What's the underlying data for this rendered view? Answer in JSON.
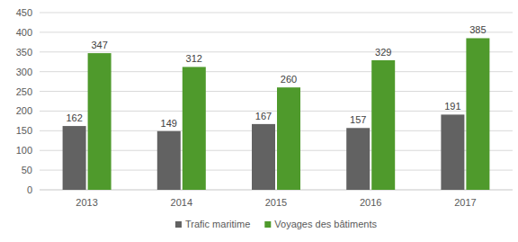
{
  "chart_data": {
    "type": "bar",
    "categories": [
      "2013",
      "2014",
      "2015",
      "2016",
      "2017"
    ],
    "series": [
      {
        "name": "Trafic maritime",
        "color": "#626262",
        "values": [
          162,
          149,
          167,
          157,
          191
        ]
      },
      {
        "name": "Voyages des bâtiments",
        "color": "#4f9a2c",
        "values": [
          347,
          312,
          260,
          329,
          385
        ]
      }
    ],
    "ylim": [
      0,
      450
    ],
    "yticks": [
      0,
      50,
      100,
      150,
      200,
      250,
      300,
      350,
      400,
      450
    ],
    "grid": true,
    "data_labels": true,
    "legend": "bottom"
  }
}
